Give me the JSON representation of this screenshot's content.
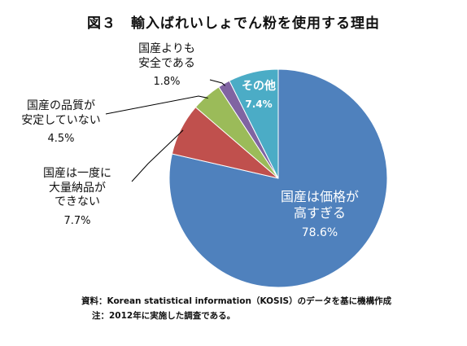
{
  "title": "図３　輸入ばれいしょでん粉を使用する理由",
  "chart_data": {
    "type": "pie",
    "start_angle_deg": 0,
    "direction": "clockwise",
    "slices": [
      {
        "label_lines": [
          "国産は価格が",
          "高すぎる"
        ],
        "value": 78.6,
        "value_label": "78.6%",
        "color": "#4f81bd"
      },
      {
        "label_lines": [
          "国産は一度に",
          "大量納品が",
          "できない"
        ],
        "value": 7.7,
        "value_label": "7.7%",
        "color": "#c0504d"
      },
      {
        "label_lines": [
          "国産の品質が",
          "安定していない"
        ],
        "value": 4.5,
        "value_label": "4.5%",
        "color": "#9bbb59"
      },
      {
        "label_lines": [
          "国産よりも",
          "安全である"
        ],
        "value": 1.8,
        "value_label": "1.8%",
        "color": "#8064a2"
      },
      {
        "label_lines": [
          "その他"
        ],
        "value": 7.4,
        "value_label": "7.4%",
        "color": "#4bacc6"
      }
    ]
  },
  "footnotes": {
    "source": "資料：Korean statistical information（KOSIS）のデータを基に機構作成",
    "note": "注：2012年に実施した調査である。"
  }
}
